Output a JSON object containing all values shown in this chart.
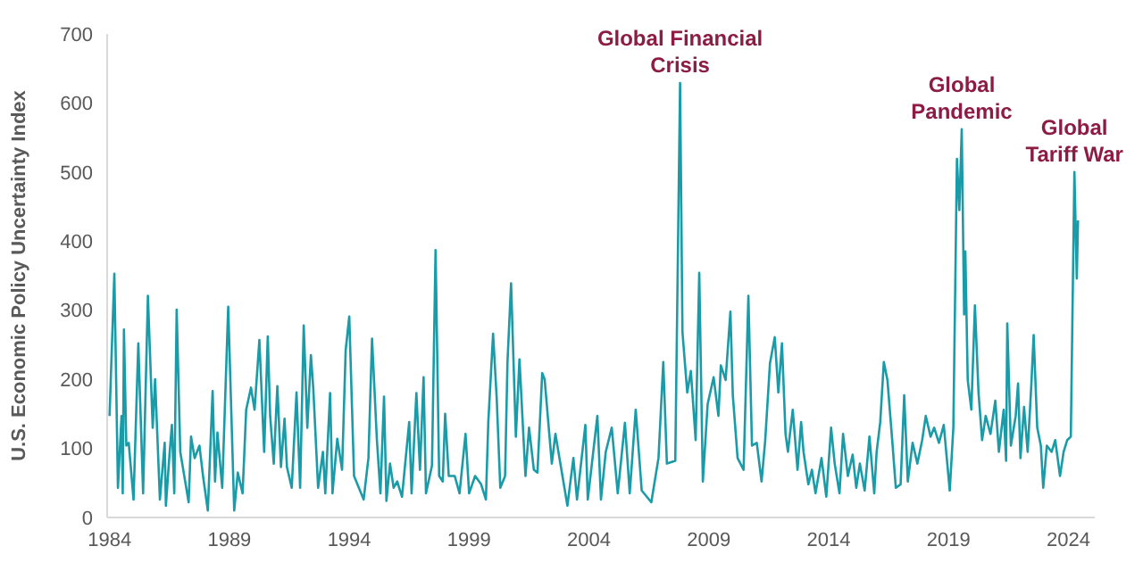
{
  "chart_data": {
    "type": "line",
    "ylabel": "U.S. Economic Policy Uncertainty Index",
    "xlim": [
      1983.9,
      2025.1
    ],
    "xticks": [
      1984,
      1989,
      1994,
      1999,
      2004,
      2009,
      2014,
      2019,
      2024
    ],
    "ylim": [
      0,
      700
    ],
    "yticks": [
      0,
      100,
      200,
      300,
      400,
      500,
      600,
      700
    ],
    "grid": false,
    "marker": "none",
    "line_style": "solid",
    "series": [
      {
        "color": "#1a9ba8",
        "x": [
          1984.0,
          1984.2,
          1984.35,
          1984.5,
          1984.55,
          1984.6,
          1984.7,
          1984.8,
          1985.0,
          1985.2,
          1985.4,
          1985.6,
          1985.8,
          1985.9,
          1986.1,
          1986.3,
          1986.35,
          1986.5,
          1986.6,
          1986.7,
          1986.8,
          1986.95,
          1987.3,
          1987.4,
          1987.55,
          1987.75,
          1987.9,
          1988.1,
          1988.3,
          1988.4,
          1988.5,
          1988.7,
          1988.95,
          1989.2,
          1989.35,
          1989.55,
          1989.7,
          1989.9,
          1990.05,
          1990.25,
          1990.45,
          1990.6,
          1990.7,
          1990.85,
          1991.0,
          1991.15,
          1991.3,
          1991.4,
          1991.6,
          1991.8,
          1991.95,
          1992.1,
          1992.25,
          1992.4,
          1992.5,
          1992.7,
          1992.9,
          1993.0,
          1993.2,
          1993.3,
          1993.5,
          1993.7,
          1993.85,
          1994.0,
          1994.2,
          1994.4,
          1994.6,
          1994.8,
          1994.95,
          1995.15,
          1995.3,
          1995.45,
          1995.55,
          1995.7,
          1995.85,
          1996.0,
          1996.2,
          1996.5,
          1996.6,
          1996.8,
          1996.95,
          1997.1,
          1997.2,
          1997.45,
          1997.6,
          1997.75,
          1997.9,
          1998.0,
          1998.15,
          1998.4,
          1998.6,
          1998.85,
          1999.0,
          1999.25,
          1999.5,
          1999.7,
          1999.8,
          2000.0,
          2000.15,
          2000.3,
          2000.5,
          2000.6,
          2000.75,
          2000.95,
          2001.1,
          2001.35,
          2001.5,
          2001.7,
          2001.85,
          2002.05,
          2002.15,
          2002.45,
          2002.6,
          2002.85,
          2003.1,
          2003.35,
          2003.5,
          2003.85,
          2003.95,
          2004.35,
          2004.5,
          2004.7,
          2004.95,
          2005.2,
          2005.5,
          2005.7,
          2005.95,
          2006.2,
          2006.6,
          2006.9,
          2007.1,
          2007.25,
          2007.6,
          2007.8,
          2007.9,
          2008.1,
          2008.25,
          2008.45,
          2008.6,
          2008.75,
          2008.95,
          2009.2,
          2009.4,
          2009.5,
          2009.7,
          2009.9,
          2010.0,
          2010.2,
          2010.45,
          2010.65,
          2010.8,
          2011.0,
          2011.2,
          2011.35,
          2011.55,
          2011.75,
          2011.9,
          2012.05,
          2012.2,
          2012.3,
          2012.5,
          2012.7,
          2012.85,
          2012.95,
          2013.15,
          2013.3,
          2013.45,
          2013.7,
          2013.9,
          2014.1,
          2014.25,
          2014.45,
          2014.6,
          2014.8,
          2015.0,
          2015.15,
          2015.3,
          2015.5,
          2015.7,
          2015.9,
          2016.0,
          2016.15,
          2016.3,
          2016.45,
          2016.65,
          2016.8,
          2017.0,
          2017.15,
          2017.3,
          2017.5,
          2017.7,
          2017.9,
          2018.05,
          2018.25,
          2018.4,
          2018.6,
          2018.8,
          2019.05,
          2019.2,
          2019.35,
          2019.45,
          2019.55,
          2019.65,
          2019.7,
          2019.8,
          2019.95,
          2020.1,
          2020.25,
          2020.4,
          2020.55,
          2020.75,
          2020.95,
          2021.1,
          2021.3,
          2021.4,
          2021.45,
          2021.6,
          2021.8,
          2021.9,
          2022.0,
          2022.15,
          2022.3,
          2022.45,
          2022.55,
          2022.7,
          2022.85,
          2022.95,
          2023.1,
          2023.3,
          2023.45,
          2023.65,
          2023.8,
          2023.95,
          2024.1,
          2024.25,
          2024.35,
          2024.4
        ],
        "values": [
          147,
          353,
          43,
          147,
          35,
          272,
          104,
          108,
          26,
          252,
          35,
          321,
          130,
          200,
          26,
          108,
          17,
          91,
          134,
          35,
          301,
          95,
          22,
          117,
          86,
          104,
          60,
          10,
          183,
          52,
          123,
          43,
          305,
          10,
          65,
          35,
          156,
          188,
          156,
          257,
          95,
          262,
          147,
          78,
          190,
          73,
          143,
          73,
          43,
          181,
          43,
          278,
          130,
          235,
          186,
          43,
          95,
          35,
          180,
          35,
          114,
          69,
          242,
          291,
          60,
          43,
          26,
          86,
          259,
          114,
          35,
          175,
          24,
          78,
          43,
          52,
          30,
          138,
          35,
          180,
          69,
          203,
          35,
          75,
          387,
          60,
          52,
          150,
          60,
          60,
          35,
          121,
          35,
          60,
          48,
          26,
          138,
          266,
          173,
          43,
          60,
          225,
          339,
          117,
          229,
          60,
          130,
          69,
          65,
          209,
          200,
          78,
          121,
          69,
          17,
          86,
          26,
          134,
          26,
          147,
          26,
          95,
          130,
          35,
          137,
          35,
          156,
          39,
          22,
          86,
          225,
          78,
          82,
          629,
          268,
          181,
          212,
          112,
          354,
          52,
          164,
          203,
          147,
          220,
          199,
          298,
          177,
          86,
          69,
          321,
          104,
          108,
          52,
          111,
          223,
          261,
          181,
          252,
          121,
          95,
          156,
          69,
          138,
          95,
          48,
          69,
          35,
          86,
          30,
          130,
          78,
          35,
          121,
          60,
          91,
          43,
          78,
          39,
          117,
          35,
          95,
          138,
          225,
          199,
          112,
          43,
          48,
          177,
          52,
          108,
          78,
          112,
          147,
          117,
          130,
          108,
          134,
          39,
          130,
          519,
          445,
          562,
          294,
          385,
          199,
          156,
          307,
          181,
          112,
          147,
          121,
          169,
          95,
          156,
          82,
          281,
          104,
          147,
          194,
          86,
          160,
          95,
          190,
          264,
          130,
          104,
          43,
          104,
          95,
          112,
          60,
          95,
          112,
          117,
          500,
          346,
          430
        ]
      }
    ],
    "annotations": [
      {
        "text": "Global Financial Crisis",
        "x": 2007.8,
        "y": 629
      },
      {
        "text": "Global Pandemic",
        "x": 2019.55,
        "y": 562
      },
      {
        "text": "Global Tariff War",
        "x": 2024.25,
        "y": 500
      }
    ]
  }
}
